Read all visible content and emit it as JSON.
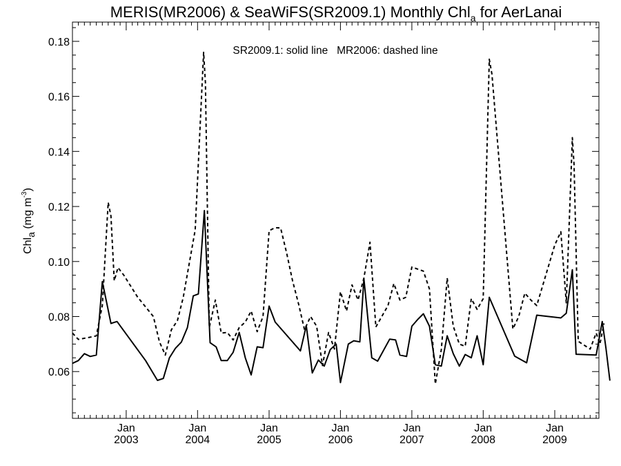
{
  "chart_data": {
    "type": "line",
    "title": {
      "main": "MERIS(MR2006) & SeaWiFS(SR2009.1) Monthly Chl",
      "subscript": "a",
      "suffix": " for AerLanai"
    },
    "ylabel": {
      "main": "Chl",
      "subscript": "a",
      "units_pre": " (mg m",
      "units_sup": "-3",
      "units_post": ")"
    },
    "annotation": "SR2009.1: solid line   MR2006: dashed line",
    "xlim": [
      "2002-04-01",
      "2009-08-15"
    ],
    "ylim": [
      0.043,
      0.187
    ],
    "yticks": [
      0.06,
      0.08,
      0.1,
      0.12,
      0.14,
      0.16,
      0.18
    ],
    "ytick_labels": [
      "0.06",
      "0.08",
      "0.10",
      "0.12",
      "0.14",
      "0.16",
      "0.18"
    ],
    "xtick_major": [
      {
        "date": "2003-01-01",
        "month": "Jan",
        "year": "2003"
      },
      {
        "date": "2004-01-01",
        "month": "Jan",
        "year": "2004"
      },
      {
        "date": "2005-01-01",
        "month": "Jan",
        "year": "2005"
      },
      {
        "date": "2006-01-01",
        "month": "Jan",
        "year": "2006"
      },
      {
        "date": "2007-01-01",
        "month": "Jan",
        "year": "2007"
      },
      {
        "date": "2008-01-01",
        "month": "Jan",
        "year": "2008"
      },
      {
        "date": "2009-01-01",
        "month": "Jan",
        "year": "2009"
      }
    ],
    "grid": false,
    "series": [
      {
        "name": "SR2009.1",
        "style": "solid",
        "color": "#000000",
        "points": [
          [
            "2002-04-01",
            0.063
          ],
          [
            "2002-05-01",
            0.064
          ],
          [
            "2002-06-01",
            0.0665
          ],
          [
            "2002-07-01",
            0.0655
          ],
          [
            "2002-08-01",
            0.066
          ],
          [
            "2002-09-01",
            0.0927
          ],
          [
            "2002-10-15",
            0.0775
          ],
          [
            "2002-11-15",
            0.0782
          ],
          [
            "2003-04-10",
            0.064
          ],
          [
            "2003-06-10",
            0.0568
          ],
          [
            "2003-07-10",
            0.0575
          ],
          [
            "2003-08-10",
            0.065
          ],
          [
            "2003-09-10",
            0.0685
          ],
          [
            "2003-10-10",
            0.0707
          ],
          [
            "2003-11-10",
            0.076
          ],
          [
            "2003-12-10",
            0.0875
          ],
          [
            "2004-01-05",
            0.0882
          ],
          [
            "2004-02-05",
            0.1185
          ],
          [
            "2004-03-05",
            0.0705
          ],
          [
            "2004-04-05",
            0.069
          ],
          [
            "2004-05-01",
            0.064
          ],
          [
            "2004-06-01",
            0.064
          ],
          [
            "2004-07-01",
            0.067
          ],
          [
            "2004-08-01",
            0.0742
          ],
          [
            "2004-09-01",
            0.065
          ],
          [
            "2004-10-01",
            0.0588
          ],
          [
            "2004-11-01",
            0.069
          ],
          [
            "2004-12-01",
            0.0687
          ],
          [
            "2005-01-01",
            0.0838
          ],
          [
            "2005-02-01",
            0.078
          ],
          [
            "2005-06-10",
            0.0675
          ],
          [
            "2005-07-10",
            0.0767
          ],
          [
            "2005-08-10",
            0.0595
          ],
          [
            "2005-09-10",
            0.0642
          ],
          [
            "2005-10-10",
            0.062
          ],
          [
            "2005-11-10",
            0.068
          ],
          [
            "2005-12-10",
            0.07
          ],
          [
            "2006-01-01",
            0.056
          ],
          [
            "2006-02-10",
            0.07
          ],
          [
            "2006-03-10",
            0.0712
          ],
          [
            "2006-04-10",
            0.0708
          ],
          [
            "2006-05-01",
            0.0937
          ],
          [
            "2006-06-10",
            0.065
          ],
          [
            "2006-07-10",
            0.0638
          ],
          [
            "2006-09-10",
            0.0718
          ],
          [
            "2006-10-10",
            0.0715
          ],
          [
            "2006-11-01",
            0.066
          ],
          [
            "2006-12-05",
            0.0655
          ],
          [
            "2007-01-01",
            0.0765
          ],
          [
            "2007-02-01",
            0.079
          ],
          [
            "2007-03-01",
            0.081
          ],
          [
            "2007-04-01",
            0.0765
          ],
          [
            "2007-05-01",
            0.0625
          ],
          [
            "2007-06-01",
            0.062
          ],
          [
            "2007-07-01",
            0.073
          ],
          [
            "2007-08-01",
            0.0665
          ],
          [
            "2007-09-01",
            0.062
          ],
          [
            "2007-10-01",
            0.0662
          ],
          [
            "2007-11-01",
            0.065
          ],
          [
            "2007-12-01",
            0.073
          ],
          [
            "2008-01-01",
            0.0625
          ],
          [
            "2008-02-01",
            0.087
          ],
          [
            "2008-06-10",
            0.0656
          ],
          [
            "2008-08-10",
            0.0632
          ],
          [
            "2008-10-01",
            0.0805
          ],
          [
            "2009-02-01",
            0.0795
          ],
          [
            "2009-03-01",
            0.0812
          ],
          [
            "2009-04-01",
            0.097
          ],
          [
            "2009-04-20",
            0.0663
          ],
          [
            "2009-08-01",
            0.066
          ],
          [
            "2009-09-01",
            0.0782
          ],
          [
            "2009-09-20",
            0.0685
          ],
          [
            "2009-10-10",
            0.0567
          ]
        ]
      },
      {
        "name": "MR2006",
        "style": "dashed",
        "color": "#000000",
        "points": [
          [
            "2002-04-01",
            0.074
          ],
          [
            "2002-05-01",
            0.0717
          ],
          [
            "2002-07-01",
            0.0725
          ],
          [
            "2002-08-01",
            0.073
          ],
          [
            "2002-09-01",
            0.084
          ],
          [
            "2002-10-01",
            0.1215
          ],
          [
            "2002-10-15",
            0.1165
          ],
          [
            "2002-11-01",
            0.093
          ],
          [
            "2002-11-20",
            0.0978
          ],
          [
            "2002-12-20",
            0.095
          ],
          [
            "2003-03-01",
            0.087
          ],
          [
            "2003-05-20",
            0.08
          ],
          [
            "2003-06-20",
            0.0708
          ],
          [
            "2003-07-20",
            0.066
          ],
          [
            "2003-08-20",
            0.0752
          ],
          [
            "2003-09-20",
            0.0785
          ],
          [
            "2003-10-20",
            0.087
          ],
          [
            "2003-11-20",
            0.0995
          ],
          [
            "2003-12-20",
            0.1115
          ],
          [
            "2004-02-01",
            0.176
          ],
          [
            "2004-02-10",
            0.165
          ],
          [
            "2004-03-01",
            0.076
          ],
          [
            "2004-04-01",
            0.086
          ],
          [
            "2004-05-01",
            0.074
          ],
          [
            "2004-06-01",
            0.0742
          ],
          [
            "2004-07-01",
            0.0715
          ],
          [
            "2004-08-01",
            0.076
          ],
          [
            "2004-09-01",
            0.078
          ],
          [
            "2004-10-01",
            0.082
          ],
          [
            "2004-11-01",
            0.0745
          ],
          [
            "2004-12-01",
            0.08
          ],
          [
            "2005-01-01",
            0.1112
          ],
          [
            "2005-02-01",
            0.1123
          ],
          [
            "2005-03-01",
            0.1122
          ],
          [
            "2005-04-01",
            0.103
          ],
          [
            "2005-05-01",
            0.093
          ],
          [
            "2005-06-01",
            0.0845
          ],
          [
            "2005-07-01",
            0.0752
          ],
          [
            "2005-08-01",
            0.08
          ],
          [
            "2005-09-01",
            0.0765
          ],
          [
            "2005-10-01",
            0.0622
          ],
          [
            "2005-11-01",
            0.0742
          ],
          [
            "2005-12-01",
            0.0682
          ],
          [
            "2006-01-01",
            0.089
          ],
          [
            "2006-02-01",
            0.082
          ],
          [
            "2006-03-01",
            0.0915
          ],
          [
            "2006-04-01",
            0.086
          ],
          [
            "2006-05-01",
            0.094
          ],
          [
            "2006-06-01",
            0.107
          ],
          [
            "2006-07-01",
            0.0762
          ],
          [
            "2006-09-01",
            0.084
          ],
          [
            "2006-10-01",
            0.092
          ],
          [
            "2006-11-01",
            0.086
          ],
          [
            "2006-12-01",
            0.087
          ],
          [
            "2007-01-01",
            0.098
          ],
          [
            "2007-03-01",
            0.0965
          ],
          [
            "2007-04-01",
            0.09
          ],
          [
            "2007-05-01",
            0.0555
          ],
          [
            "2007-06-01",
            0.068
          ],
          [
            "2007-07-01",
            0.094
          ],
          [
            "2007-08-01",
            0.0765
          ],
          [
            "2007-09-01",
            0.07
          ],
          [
            "2007-10-01",
            0.0692
          ],
          [
            "2007-11-01",
            0.0865
          ],
          [
            "2007-12-01",
            0.0826
          ],
          [
            "2008-01-01",
            0.0865
          ],
          [
            "2008-02-01",
            0.1735
          ],
          [
            "2008-02-15",
            0.168
          ],
          [
            "2008-06-01",
            0.0755
          ],
          [
            "2008-07-01",
            0.08
          ],
          [
            "2008-08-01",
            0.0885
          ],
          [
            "2008-09-01",
            0.086
          ],
          [
            "2008-10-01",
            0.084
          ],
          [
            "2009-01-01",
            0.106
          ],
          [
            "2009-02-01",
            0.1108
          ],
          [
            "2009-03-01",
            0.085
          ],
          [
            "2009-04-01",
            0.145
          ],
          [
            "2009-04-10",
            0.135
          ],
          [
            "2009-05-01",
            0.071
          ],
          [
            "2009-07-01",
            0.0682
          ],
          [
            "2009-08-01",
            0.074
          ],
          [
            "2009-08-20",
            0.07
          ],
          [
            "2009-09-10",
            0.0775
          ]
        ]
      }
    ]
  }
}
